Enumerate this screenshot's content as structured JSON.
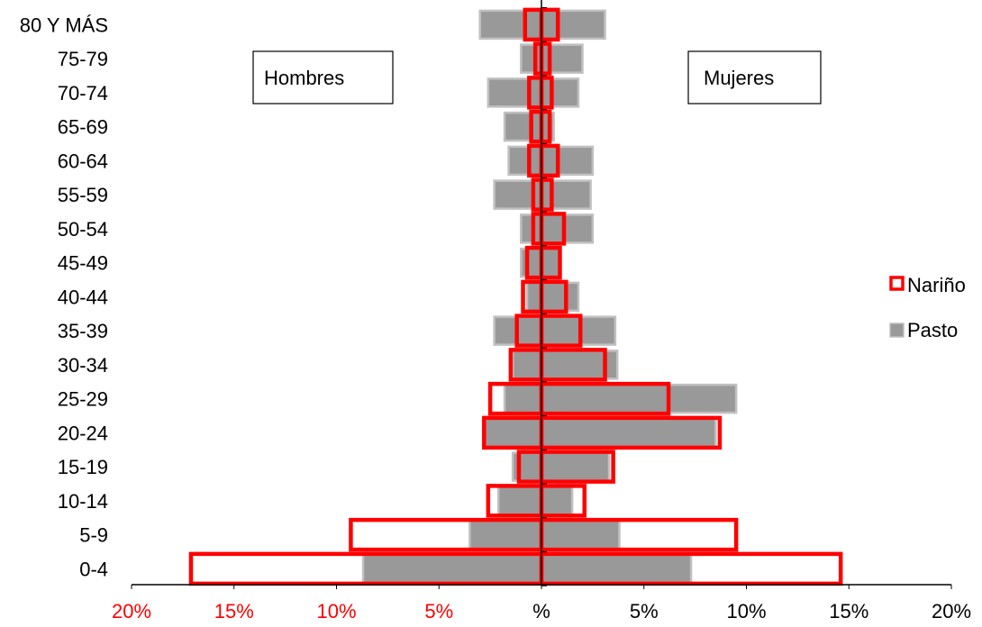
{
  "chart_data": {
    "type": "bar",
    "orientation": "horizontal",
    "subtype": "population-pyramid",
    "categories": [
      "80 Y MÁS",
      "75-79",
      "70-74",
      "65-69",
      "60-64",
      "55-59",
      "50-54",
      "45-49",
      "40-44",
      "35-39",
      "30-34",
      "25-29",
      "20-24",
      "15-19",
      "10-14",
      "5-9",
      "0-4"
    ],
    "x_ticks": [
      "20%",
      "15%",
      "10%",
      "5%",
      "%",
      "5%",
      "10%",
      "15%",
      "20%"
    ],
    "xlim": [
      -20,
      20
    ],
    "sides": {
      "left": "Hombres",
      "right": "Mujeres"
    },
    "grid": false,
    "legend_position": "right",
    "series": [
      {
        "name": "Pasto",
        "style": "filled",
        "color": "#999999",
        "border_color": "#c0c0c0",
        "hombres": [
          3.0,
          1.0,
          2.6,
          1.8,
          1.6,
          2.3,
          1.0,
          1.0,
          0.7,
          2.3,
          1.4,
          1.8,
          2.8,
          1.4,
          2.1,
          3.5,
          8.7
        ],
        "mujeres": [
          3.1,
          2.0,
          1.8,
          0.6,
          2.5,
          2.4,
          2.5,
          0.9,
          1.8,
          3.6,
          3.7,
          9.5,
          8.5,
          3.3,
          1.5,
          3.8,
          7.3
        ]
      },
      {
        "name": "Nariño",
        "style": "outline",
        "color": "#ff0000",
        "hombres": [
          0.8,
          0.3,
          0.6,
          0.5,
          0.6,
          0.4,
          0.4,
          0.7,
          0.9,
          1.2,
          1.5,
          2.5,
          2.8,
          1.1,
          2.6,
          9.3,
          17.1
        ],
        "mujeres": [
          0.8,
          0.4,
          0.5,
          0.4,
          0.8,
          0.5,
          1.1,
          0.9,
          1.2,
          1.9,
          3.1,
          6.2,
          8.7,
          3.5,
          2.1,
          9.5,
          14.6
        ]
      }
    ],
    "x_tick_colors": {
      "negative": "#ff0000",
      "zero": "#000000",
      "positive": "#000000"
    }
  }
}
